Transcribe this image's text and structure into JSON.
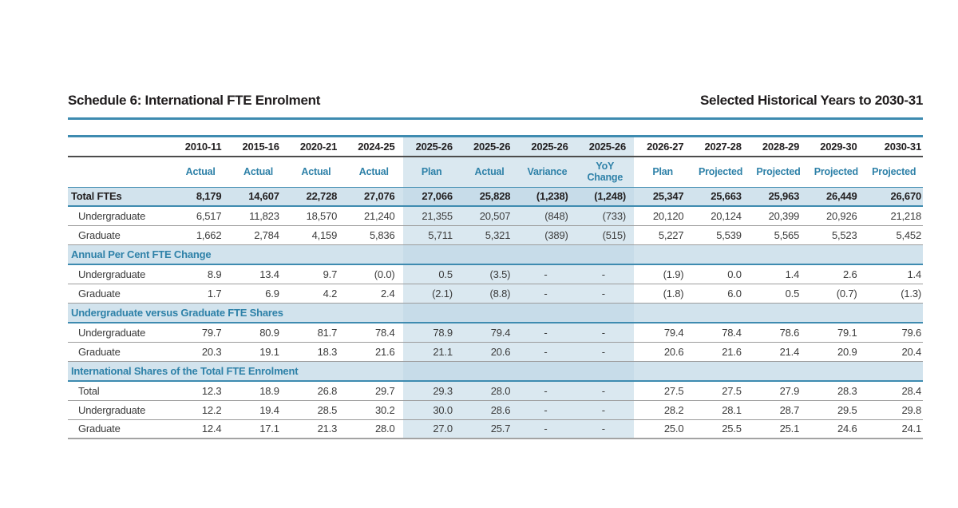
{
  "page": {
    "title_left": "Schedule 6: International FTE Enrolment",
    "title_right": "Selected Historical Years to 2030-31"
  },
  "colors": {
    "accent_blue_rule": "#3e8bb0",
    "header_text_blue": "#2e81a8",
    "band_background": "#dae8f0",
    "highlight_row_background": "#d2e3ed",
    "highlight_band_overlap": "#c7dce9",
    "dark_rule": "#4c4c4c"
  },
  "table": {
    "columns": [
      {
        "year": "2010-11",
        "type": "Actual",
        "band": false
      },
      {
        "year": "2015-16",
        "type": "Actual",
        "band": false
      },
      {
        "year": "2020-21",
        "type": "Actual",
        "band": false
      },
      {
        "year": "2024-25",
        "type": "Actual",
        "band": false
      },
      {
        "year": "2025-26",
        "type": "Plan",
        "band": true
      },
      {
        "year": "2025-26",
        "type": "Actual",
        "band": true
      },
      {
        "year": "2025-26",
        "type": "Variance",
        "band": true
      },
      {
        "year": "2025-26",
        "type": "YoY Change",
        "band": true
      },
      {
        "year": "2026-27",
        "type": "Plan",
        "band": false
      },
      {
        "year": "2027-28",
        "type": "Projected",
        "band": false
      },
      {
        "year": "2028-29",
        "type": "Projected",
        "band": false
      },
      {
        "year": "2029-30",
        "type": "Projected",
        "band": false
      },
      {
        "year": "2030-31",
        "type": "Projected",
        "band": false
      }
    ],
    "sections": [
      {
        "title": null,
        "rows": [
          {
            "label": "Total FTEs",
            "style": "total",
            "values": [
              "8,179",
              "14,607",
              "22,728",
              "27,076",
              "27,066",
              "25,828",
              "(1,238)",
              "(1,248)",
              "25,347",
              "25,663",
              "25,963",
              "26,449",
              "26,670"
            ]
          },
          {
            "label": "Undergraduate",
            "values": [
              "6,517",
              "11,823",
              "18,570",
              "21,240",
              "21,355",
              "20,507",
              "(848)",
              "(733)",
              "20,120",
              "20,124",
              "20,399",
              "20,926",
              "21,218"
            ]
          },
          {
            "label": "Graduate",
            "values": [
              "1,662",
              "2,784",
              "4,159",
              "5,836",
              "5,711",
              "5,321",
              "(389)",
              "(515)",
              "5,227",
              "5,539",
              "5,565",
              "5,523",
              "5,452"
            ]
          }
        ]
      },
      {
        "title": "Annual Per Cent FTE Change",
        "rows": [
          {
            "label": "Undergraduate",
            "values": [
              "8.9",
              "13.4",
              "9.7",
              "(0.0)",
              "0.5",
              "(3.5)",
              "-",
              "-",
              "(1.9)",
              "0.0",
              "1.4",
              "2.6",
              "1.4"
            ]
          },
          {
            "label": "Graduate",
            "values": [
              "1.7",
              "6.9",
              "4.2",
              "2.4",
              "(2.1)",
              "(8.8)",
              "-",
              "-",
              "(1.8)",
              "6.0",
              "0.5",
              "(0.7)",
              "(1.3)"
            ]
          }
        ]
      },
      {
        "title": "Undergraduate versus Graduate FTE Shares",
        "rows": [
          {
            "label": "Undergraduate",
            "values": [
              "79.7",
              "80.9",
              "81.7",
              "78.4",
              "78.9",
              "79.4",
              "-",
              "-",
              "79.4",
              "78.4",
              "78.6",
              "79.1",
              "79.6"
            ]
          },
          {
            "label": "Graduate",
            "values": [
              "20.3",
              "19.1",
              "18.3",
              "21.6",
              "21.1",
              "20.6",
              "-",
              "-",
              "20.6",
              "21.6",
              "21.4",
              "20.9",
              "20.4"
            ]
          }
        ]
      },
      {
        "title": "International Shares of the Total FTE Enrolment",
        "rows": [
          {
            "label": "Total",
            "values": [
              "12.3",
              "18.9",
              "26.8",
              "29.7",
              "29.3",
              "28.0",
              "-",
              "-",
              "27.5",
              "27.5",
              "27.9",
              "28.3",
              "28.4"
            ]
          },
          {
            "label": "Undergraduate",
            "values": [
              "12.2",
              "19.4",
              "28.5",
              "30.2",
              "30.0",
              "28.6",
              "-",
              "-",
              "28.2",
              "28.1",
              "28.7",
              "29.5",
              "29.8"
            ]
          },
          {
            "label": "Graduate",
            "values": [
              "12.4",
              "17.1",
              "21.3",
              "28.0",
              "27.0",
              "25.7",
              "-",
              "-",
              "25.0",
              "25.5",
              "25.1",
              "24.6",
              "24.1"
            ]
          }
        ]
      }
    ]
  }
}
